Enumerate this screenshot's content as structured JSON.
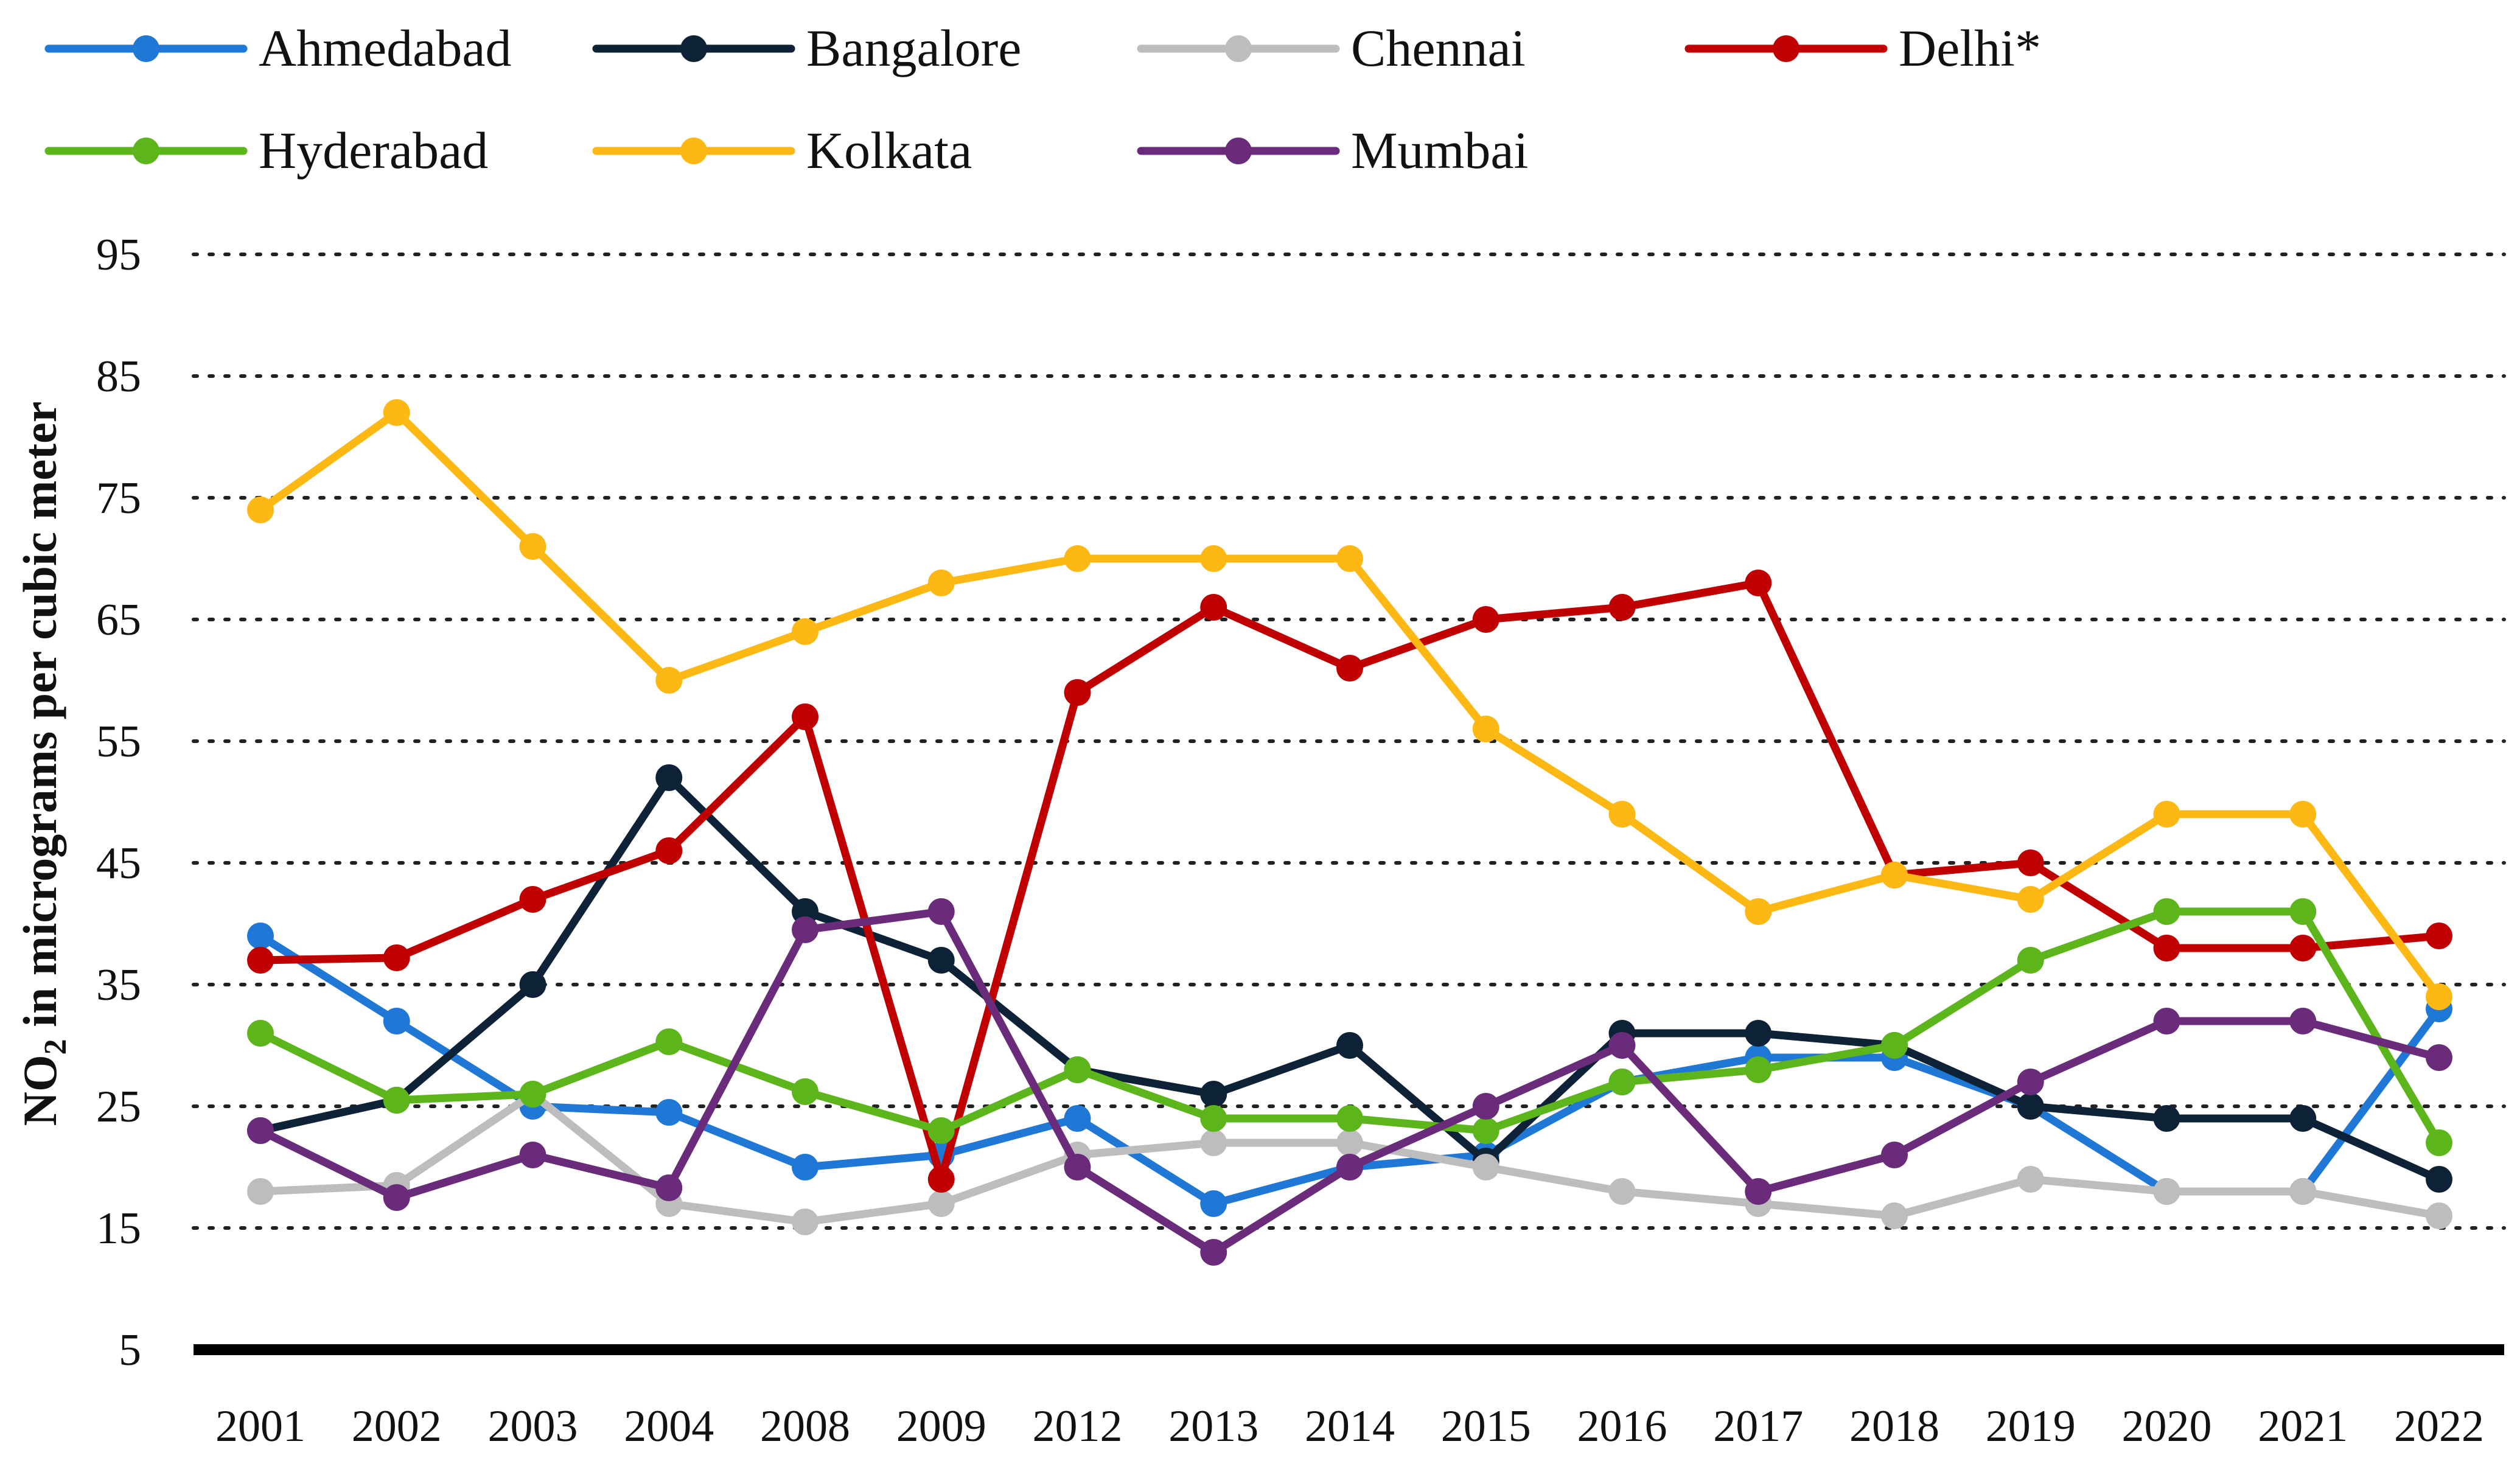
{
  "chart_data": {
    "type": "line",
    "title": "",
    "xlabel": "",
    "ylabel": "NO2 in micrograms per cubic meter",
    "ylabel_main": "NO",
    "ylabel_sub": "2",
    "ylabel_rest": " in micrograms per cubic meter",
    "ylim": [
      5,
      95
    ],
    "yticks": [
      5,
      15,
      25,
      35,
      45,
      55,
      65,
      75,
      85,
      95
    ],
    "grid": true,
    "legend_position": "top",
    "categories": [
      "2001",
      "2002",
      "2003",
      "2004",
      "2008",
      "2009",
      "2012",
      "2013",
      "2014",
      "2015",
      "2016",
      "2017",
      "2018",
      "2019",
      "2020",
      "2021",
      "2022"
    ],
    "series": [
      {
        "name": "Ahmedabad",
        "color": "#1f77d6",
        "values": [
          39,
          32,
          25,
          24.5,
          20,
          21,
          24,
          17,
          20,
          21,
          27,
          29,
          29,
          25,
          18,
          18,
          33
        ]
      },
      {
        "name": "Bangalore",
        "color": "#0d2236",
        "values": [
          23,
          25.5,
          35,
          52,
          41,
          37,
          28,
          26,
          30,
          20.5,
          31,
          31,
          30,
          25,
          24,
          24,
          19
        ]
      },
      {
        "name": "Chennai",
        "color": "#bdbdbd",
        "values": [
          18,
          18.5,
          26,
          17,
          15.5,
          17,
          21,
          22,
          22,
          20,
          18,
          17,
          16,
          19,
          18,
          18,
          16
        ]
      },
      {
        "name": "Delhi*",
        "color": "#c00000",
        "values": [
          37,
          37.2,
          42,
          46,
          57,
          19,
          59,
          66,
          61,
          65,
          66,
          68,
          44,
          45,
          38,
          38,
          39
        ]
      },
      {
        "name": "Hyderabad",
        "color": "#5db51c",
        "values": [
          31,
          25.5,
          26,
          30.3,
          26.2,
          23,
          28,
          24,
          24,
          23,
          27,
          28,
          30,
          37,
          41,
          41,
          22
        ]
      },
      {
        "name": "Kolkata",
        "color": "#fdb813",
        "values": [
          74,
          82,
          71,
          60,
          64,
          68,
          70,
          70,
          70,
          56,
          49,
          41,
          44,
          42,
          49,
          49,
          34
        ]
      },
      {
        "name": "Mumbai",
        "color": "#6a2c7a",
        "values": [
          23,
          17.5,
          21,
          18.3,
          39.5,
          41,
          20,
          13,
          20,
          25,
          30,
          18,
          21,
          27,
          32,
          32,
          29
        ]
      }
    ]
  }
}
